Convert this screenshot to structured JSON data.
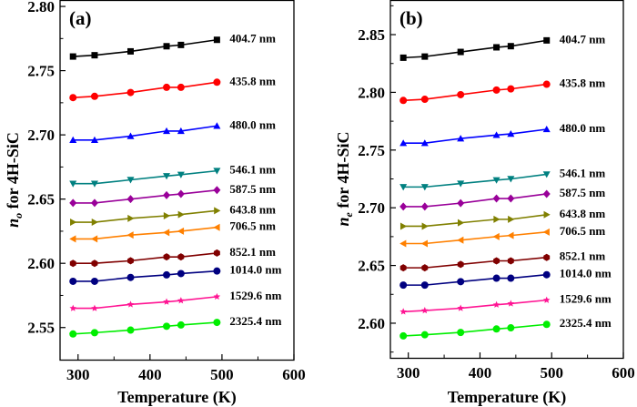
{
  "chart_data": [
    {
      "type": "line",
      "panel_label": "(a)",
      "xlabel": "Temperature (K)",
      "ylabel_main": "n",
      "ylabel_sub": "o",
      "ylabel_rest": " for 4H-SiC",
      "xlim": [
        275,
        600
      ],
      "ylim": [
        2.525,
        2.805
      ],
      "xticks": [
        300,
        400,
        500,
        600
      ],
      "yticks": [
        2.55,
        2.6,
        2.65,
        2.7,
        2.75,
        2.8
      ],
      "ytick_labels": [
        "2.55",
        "2.60",
        "2.65",
        "2.70",
        "2.75",
        "2.80"
      ],
      "grid": false,
      "x": [
        293,
        323,
        373,
        423,
        443,
        493
      ],
      "series": [
        {
          "name": "404.7 nm",
          "color": "#000000",
          "marker": "square",
          "values": [
            2.761,
            2.762,
            2.765,
            2.769,
            2.77,
            2.774
          ]
        },
        {
          "name": "435.8 nm",
          "color": "#ff0000",
          "marker": "circle",
          "values": [
            2.729,
            2.73,
            2.733,
            2.737,
            2.737,
            2.741
          ]
        },
        {
          "name": "480.0 nm",
          "color": "#0000ff",
          "marker": "triangle-up",
          "values": [
            2.696,
            2.696,
            2.699,
            2.703,
            2.703,
            2.707
          ]
        },
        {
          "name": "546.1 nm",
          "color": "#008080",
          "marker": "triangle-down",
          "values": [
            2.662,
            2.662,
            2.665,
            2.668,
            2.669,
            2.672
          ]
        },
        {
          "name": "587.5 nm",
          "color": "#990099",
          "marker": "diamond",
          "values": [
            2.647,
            2.647,
            2.65,
            2.653,
            2.654,
            2.657
          ]
        },
        {
          "name": "643.8 nm",
          "color": "#808000",
          "marker": "triangle-right",
          "values": [
            2.632,
            2.632,
            2.635,
            2.637,
            2.638,
            2.641
          ]
        },
        {
          "name": "706.5 nm",
          "color": "#ff8000",
          "marker": "triangle-left",
          "values": [
            2.619,
            2.619,
            2.622,
            2.624,
            2.625,
            2.628
          ]
        },
        {
          "name": "852.1 nm",
          "color": "#800000",
          "marker": "hexagon",
          "values": [
            2.6,
            2.6,
            2.602,
            2.605,
            2.605,
            2.608
          ]
        },
        {
          "name": "1014.0 nm",
          "color": "#000080",
          "marker": "circle",
          "values": [
            2.586,
            2.586,
            2.589,
            2.591,
            2.592,
            2.594
          ]
        },
        {
          "name": "1529.6 nm",
          "color": "#ff1493",
          "marker": "star",
          "values": [
            2.565,
            2.565,
            2.568,
            2.57,
            2.571,
            2.574
          ]
        },
        {
          "name": "2325.4 nm",
          "color": "#00ee00",
          "marker": "circle",
          "values": [
            2.545,
            2.546,
            2.548,
            2.551,
            2.552,
            2.554
          ]
        }
      ]
    },
    {
      "type": "line",
      "panel_label": "(b)",
      "xlabel": "Temperature (K)",
      "ylabel_main": "n",
      "ylabel_sub": "e",
      "ylabel_rest": " for 4H-SiC",
      "xlim": [
        275,
        600
      ],
      "ylim": [
        2.57,
        2.88
      ],
      "xticks": [
        300,
        400,
        500,
        600
      ],
      "yticks": [
        2.6,
        2.65,
        2.7,
        2.75,
        2.8,
        2.85
      ],
      "ytick_labels": [
        "2.60",
        "2.65",
        "2.70",
        "2.75",
        "2.80",
        "2.85"
      ],
      "grid": false,
      "x": [
        293,
        323,
        373,
        423,
        443,
        493
      ],
      "series": [
        {
          "name": "404.7 nm",
          "color": "#000000",
          "marker": "square",
          "values": [
            2.83,
            2.831,
            2.835,
            2.839,
            2.84,
            2.845
          ]
        },
        {
          "name": "435.8 nm",
          "color": "#ff0000",
          "marker": "circle",
          "values": [
            2.793,
            2.794,
            2.798,
            2.802,
            2.803,
            2.807
          ]
        },
        {
          "name": "480.0 nm",
          "color": "#0000ff",
          "marker": "triangle-up",
          "values": [
            2.756,
            2.756,
            2.76,
            2.763,
            2.764,
            2.768
          ]
        },
        {
          "name": "546.1 nm",
          "color": "#008080",
          "marker": "triangle-down",
          "values": [
            2.718,
            2.718,
            2.721,
            2.724,
            2.725,
            2.729
          ]
        },
        {
          "name": "587.5 nm",
          "color": "#990099",
          "marker": "diamond",
          "values": [
            2.701,
            2.701,
            2.704,
            2.708,
            2.708,
            2.712
          ]
        },
        {
          "name": "643.8 nm",
          "color": "#808000",
          "marker": "triangle-right",
          "values": [
            2.684,
            2.684,
            2.687,
            2.69,
            2.69,
            2.694
          ]
        },
        {
          "name": "706.5 nm",
          "color": "#ff8000",
          "marker": "triangle-left",
          "values": [
            2.669,
            2.669,
            2.672,
            2.675,
            2.676,
            2.679
          ]
        },
        {
          "name": "852.1 nm",
          "color": "#800000",
          "marker": "hexagon",
          "values": [
            2.648,
            2.648,
            2.651,
            2.654,
            2.654,
            2.657
          ]
        },
        {
          "name": "1014.0 nm",
          "color": "#000080",
          "marker": "circle",
          "values": [
            2.633,
            2.633,
            2.636,
            2.639,
            2.639,
            2.642
          ]
        },
        {
          "name": "1529.6 nm",
          "color": "#ff1493",
          "marker": "star",
          "values": [
            2.61,
            2.611,
            2.613,
            2.616,
            2.617,
            2.62
          ]
        },
        {
          "name": "2325.4 nm",
          "color": "#00ee00",
          "marker": "circle",
          "values": [
            2.589,
            2.59,
            2.592,
            2.595,
            2.596,
            2.599
          ]
        }
      ]
    }
  ]
}
